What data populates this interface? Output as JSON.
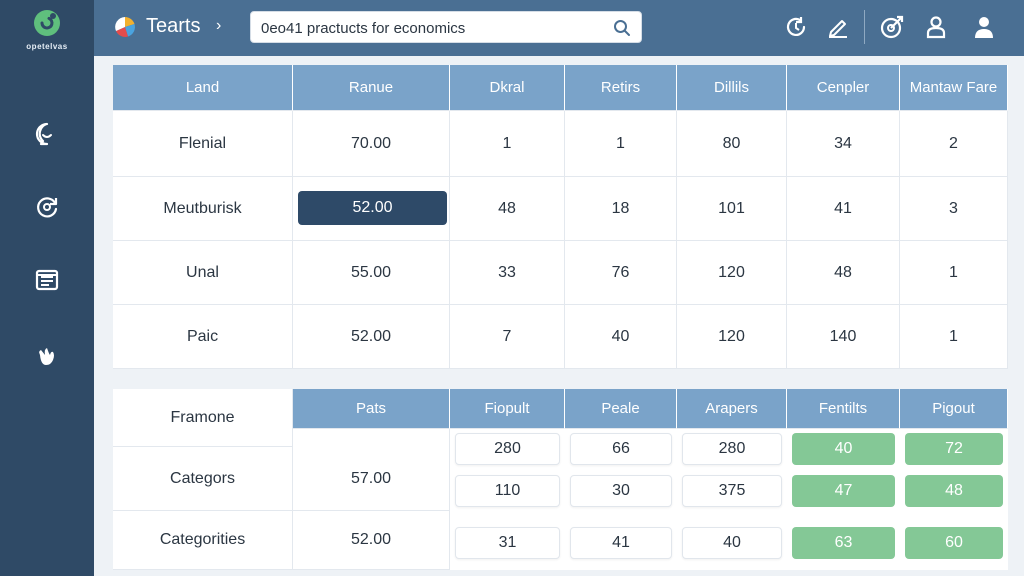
{
  "sidebar": {
    "logo_text": "opetelvas",
    "items": [
      {
        "name": "chat-icon"
      },
      {
        "name": "refresh-icon"
      },
      {
        "name": "list-icon"
      },
      {
        "name": "hand-icon"
      }
    ]
  },
  "header": {
    "title": "Tearts",
    "chevron": "›",
    "search_value": "0eo41 practucts for economics",
    "icons": [
      "refresh-arrow-icon",
      "edit-icon",
      "target-icon",
      "user-icon",
      "account-icon"
    ]
  },
  "table1": {
    "headers": [
      "Land",
      "Ranue",
      "Dkral",
      "Retirs",
      "Dillils",
      "Cenpler",
      "Mantaw Fare"
    ],
    "rows": [
      [
        "Flenial",
        "70.00",
        "1",
        "1",
        "80",
        "34",
        "2"
      ],
      [
        "Meutburisk",
        "52.00",
        "48",
        "18",
        "101",
        "41",
        "3"
      ],
      [
        "Unal",
        "55.00",
        "33",
        "76",
        "120",
        "48",
        "1"
      ],
      [
        "Paic",
        "52.00",
        "7",
        "40",
        "120",
        "140",
        "1"
      ]
    ]
  },
  "table2": {
    "corner_label": "Framone",
    "headers": [
      "Pats",
      "Fiopult",
      "Peale",
      "Arapers",
      "Fentilts",
      "Pigout"
    ],
    "rows": [
      {
        "label": "",
        "value": "",
        "cells": [
          "280",
          "66",
          "280",
          "40",
          "72"
        ]
      },
      {
        "label": "Categors",
        "value": "57.00",
        "cells": [
          "110",
          "30",
          "375",
          "47",
          "48"
        ]
      },
      {
        "label": "Categorities",
        "value": "52.00",
        "cells": [
          "31",
          "41",
          "40",
          "63",
          "60"
        ]
      }
    ]
  },
  "colors": {
    "sidebar": "#2f4a66",
    "header": "#4a6f93",
    "table_header": "#7aa3c9",
    "selected": "#2e4a68",
    "success": "#84c896"
  }
}
